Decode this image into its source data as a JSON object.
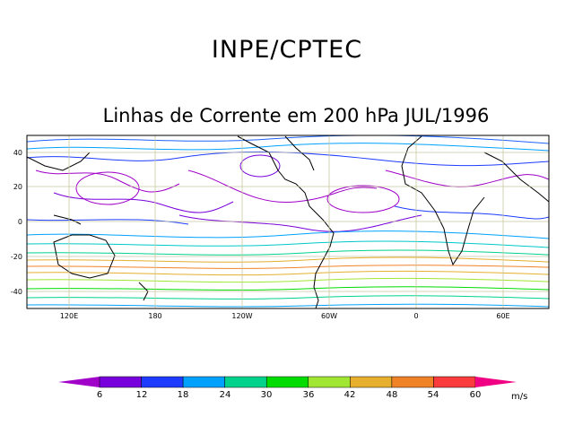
{
  "header": {
    "organization": "INPE/CPTEC",
    "title": "Linhas de Corrente em 200 hPa JUL/1996"
  },
  "map": {
    "variable": "streamlines",
    "level": "200 hPa",
    "period": "JUL/1996",
    "lat_labels": [
      "40",
      "20",
      "0",
      "-20",
      "-40"
    ],
    "lat_values": [
      40,
      20,
      0,
      -20,
      -40
    ],
    "lon_labels": [
      "120E",
      "180",
      "120W",
      "60W",
      "0",
      "60E"
    ],
    "lon_values": [
      120,
      180,
      240,
      300,
      360,
      420
    ],
    "lat_range": [
      -50,
      50
    ],
    "lon_range": [
      80,
      450
    ],
    "grid_color": "#c8c8a0"
  },
  "colorbar": {
    "unit": "m/s",
    "ticks": [
      "6",
      "12",
      "18",
      "24",
      "30",
      "36",
      "42",
      "48",
      "54",
      "60"
    ],
    "colors": [
      "#a000c8",
      "#7800dc",
      "#1e3cff",
      "#00a0ff",
      "#00d28c",
      "#00dc00",
      "#a0e632",
      "#e6af2d",
      "#f08228",
      "#fa3c3c",
      "#f00082"
    ]
  }
}
